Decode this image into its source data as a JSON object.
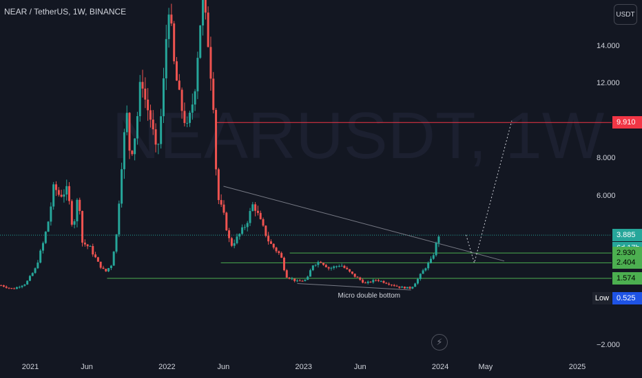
{
  "symbol": {
    "title": "NEAR / TetherUS, 1W, BINANCE",
    "currency": "USDT"
  },
  "colors": {
    "background": "#131722",
    "up": "#26a69a",
    "down": "#ef5350",
    "level_red": "#f23645",
    "level_green": "#4caf50",
    "watermark": "#1c2030"
  },
  "watermark": {
    "text": "NEARUSDT, 1W"
  },
  "chart_data": {
    "type": "candlestick",
    "ylim": [
      -2.5,
      16.5
    ],
    "yticks": [
      14,
      12,
      10,
      8,
      6,
      4,
      2,
      0,
      -2
    ],
    "ytick_labels": [
      "14.000",
      "12.000",
      "",
      "8.000",
      "6.000",
      "",
      "",
      "",
      "−2.000"
    ],
    "xticks": [
      {
        "label": "2021",
        "date": "2021-01-01"
      },
      {
        "label": "Jun",
        "date": "2021-06-01"
      },
      {
        "label": "2022",
        "date": "2022-01-01"
      },
      {
        "label": "Jun",
        "date": "2022-06-01"
      },
      {
        "label": "2023",
        "date": "2023-01-01"
      },
      {
        "label": "Jun",
        "date": "2023-06-01"
      },
      {
        "label": "2024",
        "date": "2024-01-01"
      },
      {
        "label": "May",
        "date": "2024-05-01"
      },
      {
        "label": "2025",
        "date": "2025-01-01"
      }
    ],
    "price_path": [
      [
        "2020-10-15",
        1.2
      ],
      [
        "2020-11-15",
        1.0
      ],
      [
        "2020-12-20",
        1.3
      ],
      [
        "2021-01-15",
        2.1
      ],
      [
        "2021-02-05",
        3.5
      ],
      [
        "2021-02-20",
        4.8
      ],
      [
        "2021-03-05",
        6.5
      ],
      [
        "2021-03-20",
        6.0
      ],
      [
        "2021-04-10",
        6.3
      ],
      [
        "2021-04-25",
        4.2
      ],
      [
        "2021-05-10",
        6.2
      ],
      [
        "2021-05-20",
        3.5
      ],
      [
        "2021-06-10",
        3.2
      ],
      [
        "2021-07-01",
        2.4
      ],
      [
        "2021-07-20",
        1.9
      ],
      [
        "2021-08-05",
        2.3
      ],
      [
        "2021-08-20",
        4.0
      ],
      [
        "2021-09-01",
        7.5
      ],
      [
        "2021-09-15",
        10.5
      ],
      [
        "2021-09-25",
        8.0
      ],
      [
        "2021-10-10",
        9.5
      ],
      [
        "2021-10-25",
        12.5
      ],
      [
        "2021-11-05",
        11.0
      ],
      [
        "2021-11-20",
        10.0
      ],
      [
        "2021-12-05",
        8.0
      ],
      [
        "2021-12-20",
        11.0
      ],
      [
        "2022-01-05",
        16.5
      ],
      [
        "2022-01-20",
        13.0
      ],
      [
        "2022-02-05",
        11.0
      ],
      [
        "2022-02-25",
        9.5
      ],
      [
        "2022-03-15",
        11.5
      ],
      [
        "2022-04-05",
        16.5
      ],
      [
        "2022-04-20",
        14.5
      ],
      [
        "2022-05-05",
        11.0
      ],
      [
        "2022-05-15",
        6.0
      ],
      [
        "2022-06-01",
        5.0
      ],
      [
        "2022-06-20",
        3.3
      ],
      [
        "2022-07-10",
        3.8
      ],
      [
        "2022-08-01",
        4.5
      ],
      [
        "2022-08-20",
        5.6
      ],
      [
        "2022-09-10",
        4.5
      ],
      [
        "2022-10-01",
        3.5
      ],
      [
        "2022-11-01",
        2.8
      ],
      [
        "2022-11-15",
        1.7
      ],
      [
        "2022-12-15",
        1.4
      ],
      [
        "2023-01-10",
        1.5
      ],
      [
        "2023-01-25",
        2.3
      ],
      [
        "2023-02-15",
        2.5
      ],
      [
        "2023-03-10",
        2.1
      ],
      [
        "2023-04-10",
        2.3
      ],
      [
        "2023-05-10",
        1.8
      ],
      [
        "2023-06-15",
        1.3
      ],
      [
        "2023-07-15",
        1.5
      ],
      [
        "2023-08-15",
        1.3
      ],
      [
        "2023-09-15",
        1.1
      ],
      [
        "2023-10-15",
        1.05
      ],
      [
        "2023-11-01",
        1.5
      ],
      [
        "2023-11-20",
        2.1
      ],
      [
        "2023-12-10",
        2.6
      ],
      [
        "2023-12-28",
        3.885
      ]
    ],
    "last_price": 3.885,
    "levels": [
      {
        "price": 9.91,
        "from": "2022-05-10",
        "color": "red"
      },
      {
        "price": 2.93,
        "from": "2022-11-25",
        "color": "green"
      },
      {
        "price": 2.404,
        "from": "2022-05-25",
        "color": "green"
      },
      {
        "price": 1.574,
        "from": "2021-07-25",
        "color": "green"
      }
    ],
    "trendlines": [
      {
        "points": [
          [
            "2022-06-01",
            6.5
          ],
          [
            "2024-06-20",
            2.5
          ]
        ],
        "style": "gray"
      },
      {
        "points": [
          [
            "2022-12-15",
            1.3
          ],
          [
            "2023-10-15",
            0.95
          ]
        ],
        "style": "gray"
      }
    ],
    "projection": [
      [
        "2024-03-10",
        3.9
      ],
      [
        "2024-04-01",
        2.4
      ],
      [
        "2024-07-10",
        10.0
      ]
    ],
    "annotation": {
      "text": "Micro double bottom",
      "date": "2023-06-25",
      "price": 0.6
    }
  },
  "price_badges": [
    {
      "text": "9.910",
      "price": 9.91,
      "bg": "#f23645",
      "fg": "#ffffff"
    },
    {
      "text": "3.885",
      "price": 3.885,
      "bg": "#26a69a",
      "fg": "#ffffff"
    },
    {
      "text": "6d 17h",
      "price": 3.2,
      "bg": "#26a69a",
      "fg": "#ffffff"
    },
    {
      "text": "2.930",
      "price": 2.93,
      "bg": "#4caf50",
      "fg": "#000000"
    },
    {
      "text": "2.404",
      "price": 2.404,
      "bg": "#4caf50",
      "fg": "#000000"
    },
    {
      "text": "1.574",
      "price": 1.574,
      "bg": "#4caf50",
      "fg": "#000000"
    },
    {
      "text": "0.525",
      "price": 0.525,
      "bg": "#1e53e5",
      "fg": "#ffffff"
    }
  ],
  "low_label": {
    "text": "Low",
    "price": 0.525
  },
  "icons": {
    "replay": "lightning-icon"
  }
}
